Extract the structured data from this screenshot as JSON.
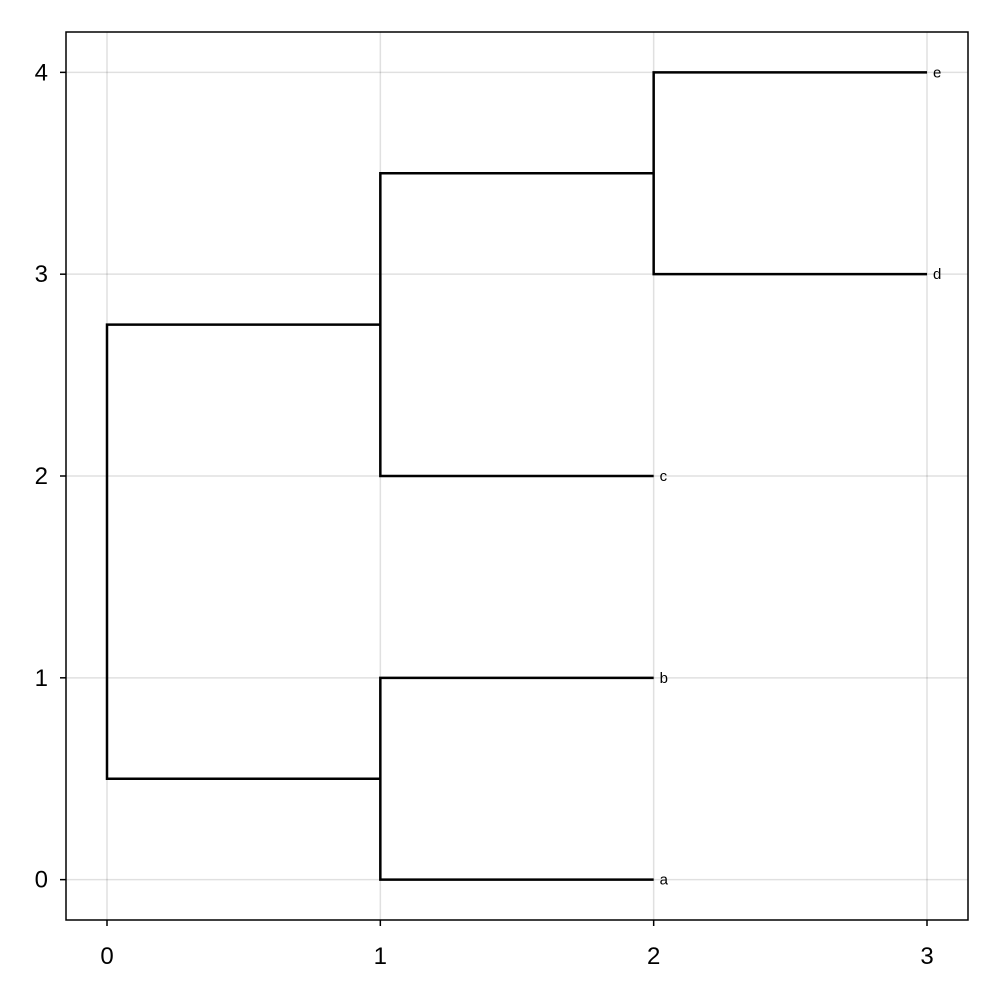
{
  "chart_data": {
    "type": "dendrogram",
    "title": "",
    "xlabel": "",
    "ylabel": "",
    "xlim": [
      -0.15,
      3.15
    ],
    "ylim": [
      -0.2,
      4.2
    ],
    "grid": true,
    "xticks": [
      0,
      1,
      2,
      3
    ],
    "yticks": [
      0,
      1,
      2,
      3,
      4
    ],
    "xtick_labels": [
      "0",
      "1",
      "2",
      "3"
    ],
    "ytick_labels": [
      "0",
      "1",
      "2",
      "3",
      "4"
    ],
    "line_color": "#000000",
    "leaves": [
      {
        "label": "a",
        "x": 2,
        "y": 0
      },
      {
        "label": "b",
        "x": 2,
        "y": 1
      },
      {
        "label": "c",
        "x": 2,
        "y": 2
      },
      {
        "label": "d",
        "x": 3,
        "y": 3
      },
      {
        "label": "e",
        "x": 3,
        "y": 4
      }
    ],
    "merges": [
      {
        "x": 1,
        "y_low": 0,
        "y_high": 1,
        "x_child_low": 2,
        "x_child_high": 2
      },
      {
        "x": 2,
        "y_low": 3,
        "y_high": 4,
        "x_child_low": 3,
        "x_child_high": 3
      },
      {
        "x": 1,
        "y_low": 2,
        "y_high": 3.5,
        "x_child_low": 2,
        "x_child_high": 2
      },
      {
        "x": 0,
        "y_low": 0.5,
        "y_high": 2.75,
        "x_child_low": 1,
        "x_child_high": 1
      }
    ]
  }
}
